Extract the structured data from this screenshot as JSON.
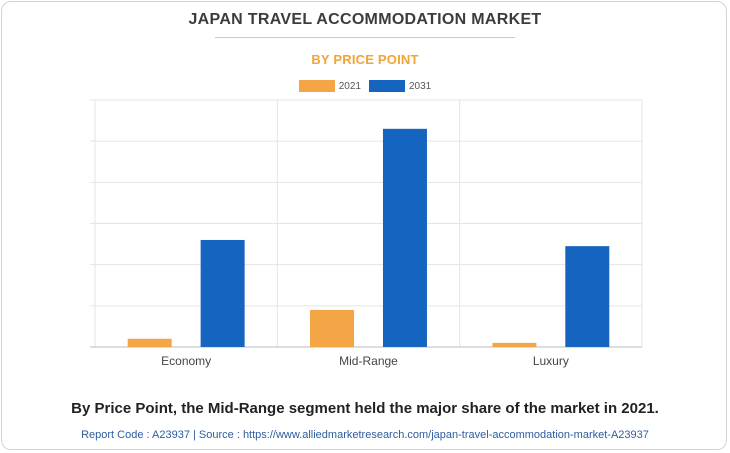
{
  "title": "JAPAN TRAVEL ACCOMMODATION MARKET",
  "subtitle": "BY PRICE POINT",
  "footer": {
    "summary": "By Price Point, the Mid-Range segment held the major share of the market in 2021.",
    "source": "Report Code : A23937  |  Source : https://www.alliedmarketresearch.com/japan-travel-accommodation-market-A23937"
  },
  "colors": {
    "series_2021": "#f4a545",
    "series_2031": "#1565c0",
    "grid": "#e4e4e4",
    "axis": "#bdbdbd"
  },
  "chart_data": {
    "type": "bar",
    "categories": [
      "Economy",
      "Mid-Range",
      "Luxury"
    ],
    "series": [
      {
        "name": "2021",
        "values": [
          0.4,
          1.8,
          0.2
        ]
      },
      {
        "name": "2031",
        "values": [
          5.2,
          10.6,
          4.9
        ]
      }
    ],
    "ylim": [
      0,
      12
    ],
    "grid": true,
    "legend": "top-center",
    "title": "JAPAN TRAVEL ACCOMMODATION MARKET",
    "subtitle": "BY PRICE POINT"
  }
}
